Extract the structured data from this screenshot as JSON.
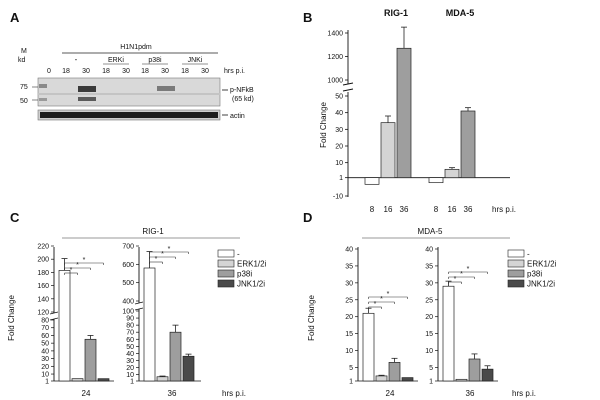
{
  "panels": {
    "a": "A",
    "b": "B",
    "c": "C",
    "d": "D"
  },
  "blot": {
    "marker_title": "M",
    "marker_unit": "kd",
    "marker_75": "75",
    "marker_50": "50",
    "virus": "H1N1pdm",
    "group_untreated": "-",
    "group_erk": "ERKi",
    "group_p38": "p38i",
    "group_jnk": "JNKi",
    "lanes": [
      "0",
      "18",
      "30",
      "18",
      "30",
      "18",
      "30",
      "18",
      "30"
    ],
    "time_label": "hrs p.i.",
    "band_label": "p-NFkB",
    "band_size": "(65 kd)",
    "actin_label": "actin"
  },
  "chart_data": [
    {
      "id": "B",
      "type": "bar",
      "title_left": "RIG-1",
      "title_right": "MDA-5",
      "ylabel": "Fold Change",
      "xlabel": "hrs p.i.",
      "yticks_lower": [
        -10,
        1,
        10,
        20,
        30,
        40,
        50
      ],
      "yticks_upper": [
        1000,
        1200,
        1400
      ],
      "groups": [
        {
          "name": "RIG-1",
          "categories": [
            "8",
            "16",
            "36"
          ],
          "values": [
            -3,
            34,
            1270
          ],
          "errors": [
            0,
            4,
            180
          ]
        },
        {
          "name": "MDA-5",
          "categories": [
            "8",
            "16",
            "36"
          ],
          "values": [
            -2,
            6,
            41
          ],
          "errors": [
            0,
            1,
            2
          ]
        }
      ]
    },
    {
      "id": "C",
      "type": "bar",
      "title": "RIG-1",
      "ylabel": "Fold Change",
      "xlabel": "hrs p.i.",
      "legend": [
        "-",
        "ERK1/2i",
        "p38i",
        "JNK1/2i"
      ],
      "significance_marks": [
        "*",
        "*",
        "*",
        "*",
        "*",
        "*"
      ],
      "subplots": [
        {
          "time": "24",
          "yticks_lower": [
            1,
            10,
            20,
            30,
            40,
            50,
            60,
            70,
            80
          ],
          "yticks_upper": [
            120,
            140,
            160,
            180,
            200,
            220
          ],
          "values": [
            183,
            4,
            55,
            4
          ],
          "errors": [
            18,
            0,
            5,
            0
          ]
        },
        {
          "time": "36",
          "yticks_lower": [
            1,
            10,
            20,
            30,
            40,
            50,
            60,
            70,
            80,
            90,
            100
          ],
          "yticks_upper": [
            400,
            500,
            600,
            700
          ],
          "values": [
            580,
            7,
            70,
            36
          ],
          "errors": [
            90,
            1,
            10,
            3
          ]
        }
      ]
    },
    {
      "id": "D",
      "type": "bar",
      "title": "MDA-5",
      "ylabel": "Fold Change",
      "xlabel": "hrs p.i.",
      "legend": [
        "-",
        "ERK1/2i",
        "p38i",
        "JNK1/2i"
      ],
      "significance_marks": [
        "*",
        "*",
        "*",
        "*",
        "*",
        "*"
      ],
      "subplots": [
        {
          "time": "24",
          "yticks": [
            1,
            5,
            10,
            15,
            20,
            25,
            30,
            35,
            40
          ],
          "values": [
            21,
            2.5,
            6.5,
            2
          ],
          "errors": [
            1.5,
            0.2,
            1.2,
            0
          ]
        },
        {
          "time": "36",
          "yticks": [
            1,
            5,
            10,
            15,
            20,
            25,
            30,
            35,
            40
          ],
          "values": [
            29,
            1.5,
            7.5,
            4.5
          ],
          "errors": [
            1.5,
            0,
            1.5,
            1
          ]
        }
      ]
    }
  ]
}
